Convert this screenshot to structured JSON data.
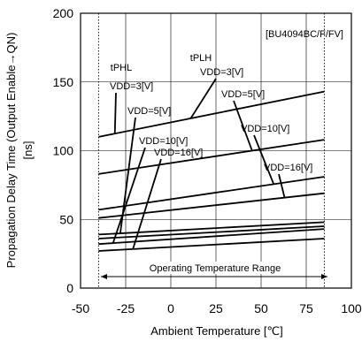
{
  "chart_data": {
    "type": "line",
    "title": "",
    "tag": "[BU4094BC/F/FV]",
    "xlabel": "Ambient Temperature [℃]",
    "ylabel": "Propagation Delay Time (Output Enable→QN)",
    "ylabel_unit": "[ns]",
    "xlim": [
      -50,
      100
    ],
    "ylim": [
      0,
      200
    ],
    "x_ticks": [
      -50,
      -25,
      0,
      25,
      50,
      75,
      100
    ],
    "x_tick_labels": [
      "-50",
      "-25",
      "0",
      "25",
      "50",
      "75",
      "100"
    ],
    "y_ticks": [
      0,
      50,
      100,
      150,
      200
    ],
    "y_tick_labels": [
      "0",
      "50",
      "100",
      "150",
      "200"
    ],
    "grid": true,
    "operating_range": {
      "min": -40,
      "max": 85,
      "label": "Operating Temperature Range"
    },
    "x": [
      -40,
      85
    ],
    "series": [
      {
        "name": "tPLH VDD=3[V]",
        "values": [
          110,
          143
        ]
      },
      {
        "name": "tPLH VDD=5[V]",
        "values": [
          83,
          108
        ]
      },
      {
        "name": "tPLH VDD=10[V]",
        "values": [
          57,
          81
        ]
      },
      {
        "name": "tPLH VDD=16[V]",
        "values": [
          51,
          69
        ]
      },
      {
        "name": "tPHL VDD=3[V]",
        "values": [
          39,
          48
        ]
      },
      {
        "name": "tPHL VDD=5[V]",
        "values": [
          36,
          45
        ]
      },
      {
        "name": "tPHL VDD=10[V]",
        "values": [
          32,
          43
        ]
      },
      {
        "name": "tPHL VDD=16[V]",
        "values": [
          27,
          36
        ]
      }
    ],
    "annotations": [
      {
        "id": "tphl",
        "text": "tPHL"
      },
      {
        "id": "tplh",
        "text": "tPLH"
      },
      {
        "id": "tphl-vdd3",
        "text": "VDD=3[V]"
      },
      {
        "id": "tphl-vdd5",
        "text": "VDD=5[V]"
      },
      {
        "id": "tphl-vdd10",
        "text": "VDD=10[V]"
      },
      {
        "id": "tphl-vdd16",
        "text": "VDD=16[V]"
      },
      {
        "id": "tplh-vdd3",
        "text": "VDD=3[V]"
      },
      {
        "id": "tplh-vdd5",
        "text": "VDD=5[V]"
      },
      {
        "id": "tplh-vdd10",
        "text": "VDD=10[V]"
      },
      {
        "id": "tplh-vdd16",
        "text": "VDD=16[V]"
      }
    ]
  }
}
